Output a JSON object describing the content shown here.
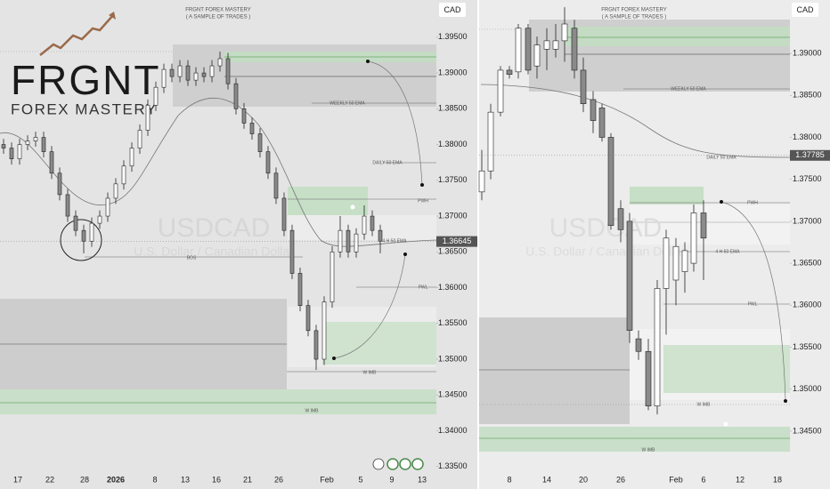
{
  "logo": {
    "title": "FRGNT",
    "subtitle": "FOREX MASTERY"
  },
  "chart_data": [
    {
      "type": "candlestick",
      "title": "FRGNT FOREX MASTERY",
      "subtitle": "( A SAMPLE OF TRADES )",
      "currency": "CAD",
      "watermark": "USDCAD",
      "watermark_sub": "U.S. Dollar / Canadian Dollar",
      "price_label": 1.36645,
      "up_color": "#ffffff",
      "down_color": "#8a8a8a",
      "ylim": [
        1.3341,
        1.4002
      ],
      "yticks": [
        {
          "value": 1.335,
          "label": "1.33500"
        },
        {
          "value": 1.34,
          "label": "1.34000"
        },
        {
          "value": 1.345,
          "label": "1.34500"
        },
        {
          "value": 1.35,
          "label": "1.35000"
        },
        {
          "value": 1.355,
          "label": "1.35500"
        },
        {
          "value": 1.36,
          "label": "1.36000"
        },
        {
          "value": 1.365,
          "label": "1.36500"
        },
        {
          "value": 1.37,
          "label": "1.37000"
        },
        {
          "value": 1.375,
          "label": "1.37500"
        },
        {
          "value": 1.38,
          "label": "1.38000"
        },
        {
          "value": 1.385,
          "label": "1.38500"
        },
        {
          "value": 1.39,
          "label": "1.39000"
        },
        {
          "value": 1.395,
          "label": "1.39500"
        }
      ],
      "xticks": [
        "17",
        "22",
        "28",
        "2026",
        "8",
        "13",
        "16",
        "21",
        "26",
        "Feb",
        "5",
        "9",
        "13"
      ],
      "annotations": [
        "WEEKLY 50 EMA",
        "DAILY 50 EMA",
        "PWH",
        "4 H 50 EMA",
        "BOS",
        "PWL",
        "W IMB",
        "W IMB"
      ],
      "values": [
        [
          1.38,
          1.3808,
          1.3787,
          1.3795
        ],
        [
          1.3795,
          1.3803,
          1.3772,
          1.378
        ],
        [
          1.378,
          1.3808,
          1.3772,
          1.38
        ],
        [
          1.38,
          1.3813,
          1.3792,
          1.3805
        ],
        [
          1.3805,
          1.3818,
          1.3797,
          1.381
        ],
        [
          1.381,
          1.3818,
          1.3782,
          1.379
        ],
        [
          1.379,
          1.3798,
          1.3752,
          1.376
        ],
        [
          1.376,
          1.3768,
          1.3722,
          1.373
        ],
        [
          1.373,
          1.3738,
          1.3692,
          1.37
        ],
        [
          1.37,
          1.3708,
          1.3672,
          1.368
        ],
        [
          1.368,
          1.3688,
          1.3648,
          1.3665
        ],
        [
          1.3665,
          1.3698,
          1.3657,
          1.369
        ],
        [
          1.369,
          1.3708,
          1.3682,
          1.37
        ],
        [
          1.37,
          1.3733,
          1.3692,
          1.3725
        ],
        [
          1.3725,
          1.3753,
          1.3717,
          1.3745
        ],
        [
          1.3745,
          1.3778,
          1.3737,
          1.377
        ],
        [
          1.377,
          1.3803,
          1.3762,
          1.3795
        ],
        [
          1.3795,
          1.3828,
          1.3787,
          1.382
        ],
        [
          1.382,
          1.3863,
          1.3812,
          1.3855
        ],
        [
          1.3855,
          1.3888,
          1.3847,
          1.388
        ],
        [
          1.388,
          1.3913,
          1.3872,
          1.3905
        ],
        [
          1.3905,
          1.3913,
          1.3887,
          1.3895
        ],
        [
          1.3895,
          1.3918,
          1.3887,
          1.391
        ],
        [
          1.391,
          1.3918,
          1.3882,
          1.389
        ],
        [
          1.389,
          1.3908,
          1.3882,
          1.39
        ],
        [
          1.39,
          1.3908,
          1.3887,
          1.3895
        ],
        [
          1.3895,
          1.3918,
          1.3887,
          1.391
        ],
        [
          1.391,
          1.393,
          1.3902,
          1.392
        ],
        [
          1.392,
          1.3928,
          1.3877,
          1.3885
        ],
        [
          1.3885,
          1.3893,
          1.3842,
          1.385
        ],
        [
          1.385,
          1.3858,
          1.3822,
          1.383
        ],
        [
          1.383,
          1.3838,
          1.3807,
          1.3815
        ],
        [
          1.3815,
          1.3823,
          1.3782,
          1.379
        ],
        [
          1.379,
          1.3798,
          1.3752,
          1.376
        ],
        [
          1.376,
          1.3768,
          1.3717,
          1.3725
        ],
        [
          1.3725,
          1.3733,
          1.3672,
          1.368
        ],
        [
          1.368,
          1.3688,
          1.3612,
          1.362
        ],
        [
          1.362,
          1.3628,
          1.3567,
          1.3575
        ],
        [
          1.3575,
          1.3583,
          1.3532,
          1.354
        ],
        [
          1.354,
          1.3548,
          1.3485,
          1.35
        ],
        [
          1.35,
          1.3588,
          1.3492,
          1.358
        ],
        [
          1.358,
          1.3658,
          1.3572,
          1.365
        ],
        [
          1.365,
          1.37,
          1.3642,
          1.368
        ],
        [
          1.368,
          1.3688,
          1.3642,
          1.365
        ],
        [
          1.365,
          1.3683,
          1.3642,
          1.3675
        ],
        [
          1.3675,
          1.3715,
          1.3667,
          1.37
        ],
        [
          1.37,
          1.3708,
          1.3672,
          1.368
        ],
        [
          1.368,
          1.3688,
          1.3648,
          1.3665
        ]
      ]
    },
    {
      "type": "candlestick",
      "title": "FRGNT FOREX MASTERY",
      "subtitle": "( A SAMPLE OF TRADES )",
      "currency": "CAD",
      "watermark": "USDCAD",
      "watermark_sub": "U.S. Dollar / Canadian Dollar",
      "price_label": 1.37785,
      "up_color": "#ffffff",
      "down_color": "#8a8a8a",
      "ylim": [
        1.33917,
        1.39636
      ],
      "yticks": [
        {
          "value": 1.345,
          "label": "1.34500"
        },
        {
          "value": 1.35,
          "label": "1.35000"
        },
        {
          "value": 1.355,
          "label": "1.35500"
        },
        {
          "value": 1.36,
          "label": "1.36000"
        },
        {
          "value": 1.365,
          "label": "1.36500"
        },
        {
          "value": 1.37,
          "label": "1.37000"
        },
        {
          "value": 1.375,
          "label": "1.37500"
        },
        {
          "value": 1.38,
          "label": "1.38000"
        },
        {
          "value": 1.385,
          "label": "1.38500"
        },
        {
          "value": 1.39,
          "label": "1.39000"
        }
      ],
      "xticks": [
        "8",
        "14",
        "20",
        "26",
        "Feb",
        "6",
        "12",
        "18"
      ],
      "annotations": [
        "WEEKLY 50 EMA",
        "DAILY 50 EMA",
        "PWH",
        "4 H 50 EMA",
        "PWL",
        "W IMB",
        "W IMB"
      ],
      "values": [
        [
          1.3735,
          1.3785,
          1.3725,
          1.376
        ],
        [
          1.376,
          1.384,
          1.375,
          1.383
        ],
        [
          1.383,
          1.3885,
          1.3825,
          1.388
        ],
        [
          1.388,
          1.3885,
          1.387,
          1.3875
        ],
        [
          1.3878,
          1.3935,
          1.387,
          1.393
        ],
        [
          1.393,
          1.3935,
          1.3875,
          1.388
        ],
        [
          1.3885,
          1.392,
          1.387,
          1.391
        ],
        [
          1.3905,
          1.393,
          1.388,
          1.3915
        ],
        [
          1.3905,
          1.3935,
          1.3895,
          1.3915
        ],
        [
          1.3915,
          1.3955,
          1.389,
          1.3935
        ],
        [
          1.393,
          1.394,
          1.387,
          1.388
        ],
        [
          1.388,
          1.3895,
          1.383,
          1.384
        ],
        [
          1.3845,
          1.3855,
          1.3805,
          1.382
        ],
        [
          1.3835,
          1.384,
          1.3795,
          1.38
        ],
        [
          1.38,
          1.3805,
          1.369,
          1.3695
        ],
        [
          1.3715,
          1.3725,
          1.3675,
          1.369
        ],
        [
          1.37,
          1.371,
          1.3555,
          1.357
        ],
        [
          1.356,
          1.357,
          1.3535,
          1.3545
        ],
        [
          1.3545,
          1.356,
          1.3475,
          1.348
        ],
        [
          1.348,
          1.363,
          1.347,
          1.362
        ],
        [
          1.362,
          1.369,
          1.3565,
          1.368
        ],
        [
          1.363,
          1.368,
          1.36,
          1.367
        ],
        [
          1.364,
          1.3675,
          1.3615,
          1.3665
        ],
        [
          1.365,
          1.372,
          1.364,
          1.371
        ],
        [
          1.371,
          1.3725,
          1.363,
          1.368
        ]
      ]
    }
  ]
}
